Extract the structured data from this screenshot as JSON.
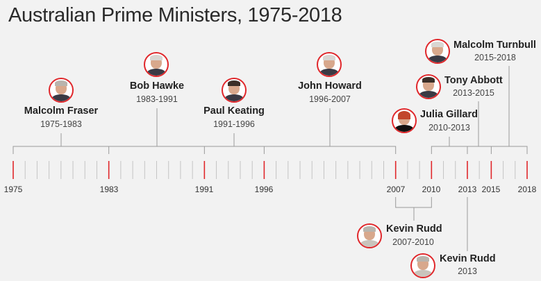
{
  "title": "Australian Prime Ministers, 1975-2018",
  "colors": {
    "accent": "#e0272b",
    "line": "#9a9a9a",
    "background": "#f2f2f2"
  },
  "years": [
    "1975",
    "1983",
    "1991",
    "1996",
    "2007",
    "2010",
    "2013",
    "2015",
    "2018"
  ],
  "ministers": [
    {
      "name": "Malcolm Fraser",
      "years": "1975-1983",
      "icon": "portrait-icon"
    },
    {
      "name": "Bob Hawke",
      "years": "1983-1991",
      "icon": "portrait-icon"
    },
    {
      "name": "Paul Keating",
      "years": "1991-1996",
      "icon": "portrait-icon"
    },
    {
      "name": "John Howard",
      "years": "1996-2007",
      "icon": "portrait-icon"
    },
    {
      "name": "Julia Gillard",
      "years": "2010-2013",
      "icon": "portrait-icon"
    },
    {
      "name": "Tony Abbott",
      "years": "2013-2015",
      "icon": "portrait-icon"
    },
    {
      "name": "Malcolm Turnbull",
      "years": "2015-2018",
      "icon": "portrait-icon"
    },
    {
      "name": "Kevin Rudd",
      "years": "2007-2010",
      "icon": "portrait-icon"
    },
    {
      "name": "Kevin Rudd",
      "years": "2013",
      "icon": "portrait-icon"
    }
  ]
}
